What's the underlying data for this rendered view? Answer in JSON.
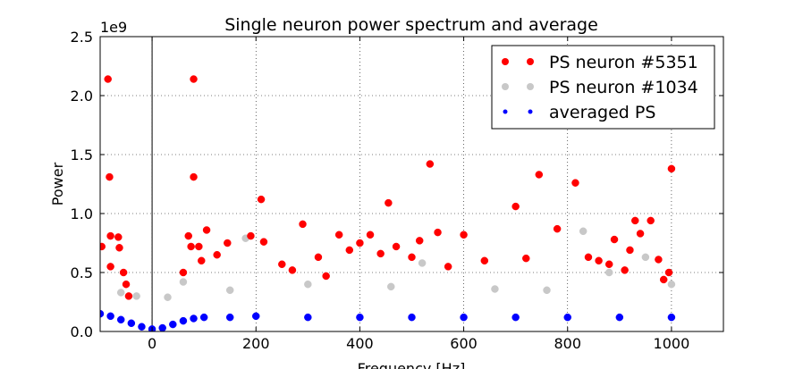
{
  "chart_data": {
    "type": "scatter",
    "title": "Single neuron power spectrum and average",
    "xlabel": "Frequency [Hz]",
    "ylabel": "Power",
    "y_multiplier_label": "1e9",
    "xlim": [
      -100,
      1100
    ],
    "ylim": [
      0.0,
      2.5
    ],
    "x_ticks": [
      "0",
      "200",
      "400",
      "600",
      "800",
      "1000"
    ],
    "x_tick_values": [
      0,
      200,
      400,
      600,
      800,
      1000
    ],
    "y_ticks": [
      "0.0",
      "0.5",
      "1.0",
      "1.5",
      "2.0",
      "2.5"
    ],
    "y_tick_values": [
      0.0,
      0.5,
      1.0,
      1.5,
      2.0,
      2.5
    ],
    "grid": true,
    "grid_style": "dotted",
    "legend_position": "upper-right",
    "series": [
      {
        "name": "PS neuron #5351",
        "color": "#ff0000",
        "marker": "circle",
        "points": [
          [
            -85,
            2.14
          ],
          [
            -82,
            1.31
          ],
          [
            -80,
            0.81
          ],
          [
            -65,
            0.8
          ],
          [
            -97,
            0.72
          ],
          [
            -63,
            0.71
          ],
          [
            -55,
            0.5
          ],
          [
            -50,
            0.4
          ],
          [
            -45,
            0.3
          ],
          [
            -80,
            0.55
          ],
          [
            80,
            2.14
          ],
          [
            80,
            1.31
          ],
          [
            70,
            0.81
          ],
          [
            90,
            0.72
          ],
          [
            105,
            0.86
          ],
          [
            75,
            0.72
          ],
          [
            60,
            0.5
          ],
          [
            95,
            0.6
          ],
          [
            125,
            0.65
          ],
          [
            145,
            0.75
          ],
          [
            210,
            1.12
          ],
          [
            190,
            0.81
          ],
          [
            215,
            0.76
          ],
          [
            290,
            0.91
          ],
          [
            360,
            0.82
          ],
          [
            455,
            1.09
          ],
          [
            535,
            1.42
          ],
          [
            700,
            1.06
          ],
          [
            745,
            1.33
          ],
          [
            815,
            1.26
          ],
          [
            1000,
            1.38
          ],
          [
            940,
            0.83
          ],
          [
            960,
            0.94
          ],
          [
            975,
            0.61
          ],
          [
            930,
            0.94
          ],
          [
            890,
            0.78
          ],
          [
            920,
            0.69
          ],
          [
            780,
            0.87
          ],
          [
            600,
            0.82
          ],
          [
            550,
            0.84
          ],
          [
            515,
            0.77
          ],
          [
            470,
            0.72
          ],
          [
            420,
            0.82
          ],
          [
            400,
            0.75
          ],
          [
            380,
            0.69
          ],
          [
            320,
            0.63
          ],
          [
            250,
            0.57
          ],
          [
            270,
            0.52
          ],
          [
            335,
            0.47
          ],
          [
            440,
            0.66
          ],
          [
            500,
            0.63
          ],
          [
            570,
            0.55
          ],
          [
            640,
            0.6
          ],
          [
            720,
            0.62
          ],
          [
            840,
            0.63
          ],
          [
            860,
            0.6
          ],
          [
            880,
            0.57
          ],
          [
            910,
            0.52
          ],
          [
            995,
            0.5
          ],
          [
            985,
            0.44
          ]
        ]
      },
      {
        "name": "PS neuron #1034",
        "color": "#c8c8c8",
        "marker": "circle",
        "points": [
          [
            180,
            0.79
          ],
          [
            830,
            0.85
          ],
          [
            1000,
            0.4
          ],
          [
            950,
            0.63
          ],
          [
            520,
            0.58
          ],
          [
            -60,
            0.33
          ],
          [
            -30,
            0.3
          ],
          [
            30,
            0.29
          ],
          [
            60,
            0.42
          ],
          [
            150,
            0.35
          ],
          [
            300,
            0.4
          ],
          [
            460,
            0.38
          ],
          [
            660,
            0.36
          ],
          [
            760,
            0.35
          ],
          [
            880,
            0.5
          ]
        ]
      },
      {
        "name": "averaged PS",
        "color": "#0000ff",
        "marker": "circle",
        "points": [
          [
            -100,
            0.15
          ],
          [
            -80,
            0.13
          ],
          [
            -60,
            0.1
          ],
          [
            -40,
            0.07
          ],
          [
            -20,
            0.04
          ],
          [
            0,
            0.02
          ],
          [
            20,
            0.03
          ],
          [
            40,
            0.06
          ],
          [
            60,
            0.09
          ],
          [
            80,
            0.11
          ],
          [
            100,
            0.12
          ],
          [
            150,
            0.12
          ],
          [
            200,
            0.13
          ],
          [
            300,
            0.12
          ],
          [
            400,
            0.12
          ],
          [
            500,
            0.12
          ],
          [
            600,
            0.12
          ],
          [
            700,
            0.12
          ],
          [
            800,
            0.12
          ],
          [
            900,
            0.12
          ],
          [
            1000,
            0.12
          ]
        ]
      }
    ]
  }
}
